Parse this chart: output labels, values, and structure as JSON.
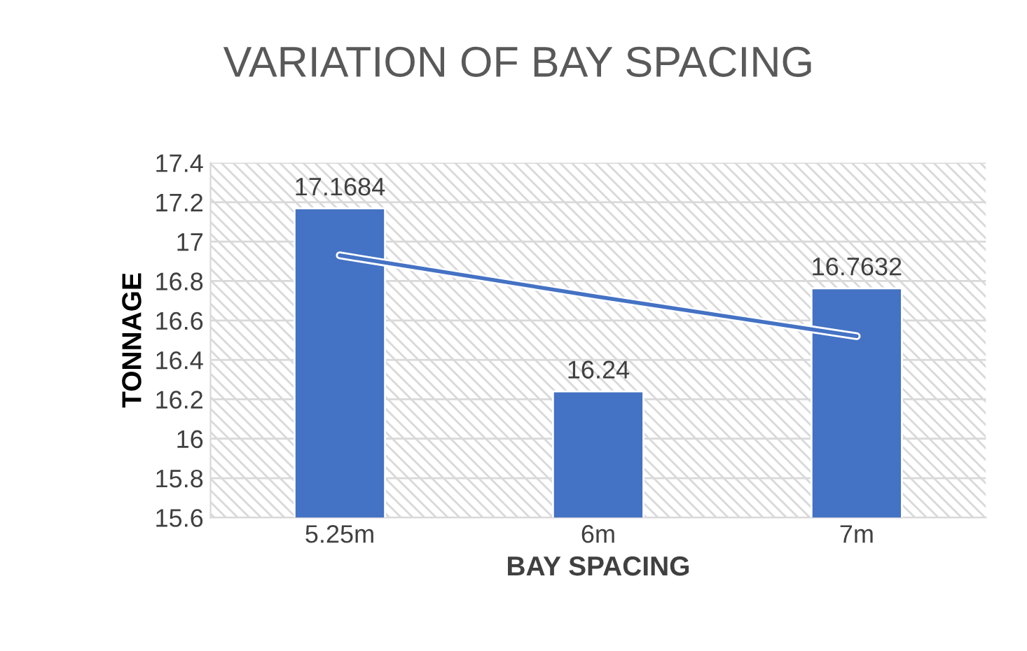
{
  "chart_data": {
    "type": "bar",
    "title": "VARIATION OF BAY SPACING",
    "xlabel": "BAY SPACING",
    "ylabel": "TONNAGE",
    "categories": [
      "5.25m",
      "6m",
      "7m"
    ],
    "series": [
      {
        "color": "#4472c4",
        "values": [
          17.1684,
          16.24,
          16.7632
        ],
        "value_labels": [
          "17.1684",
          "16.24",
          "16.7632"
        ]
      },
      {
        "type": "line",
        "color": "#4472c4",
        "values": [
          16.93,
          16.72,
          16.52
        ]
      }
    ],
    "ylim": [
      15.6,
      17.4
    ],
    "yticks": [
      15.6,
      15.8,
      16,
      16.2,
      16.4,
      16.6,
      16.8,
      17,
      17.2,
      17.4
    ],
    "grid": "y"
  }
}
